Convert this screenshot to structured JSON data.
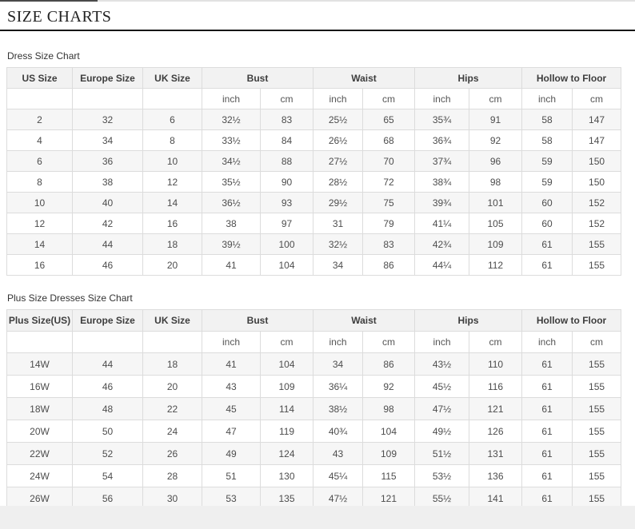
{
  "page": {
    "title": "SIZE CHARTS"
  },
  "units": {
    "inch": "inch",
    "cm": "cm"
  },
  "dress_chart": {
    "label": "Dress Size Chart",
    "columns": [
      "US Size",
      "Europe Size",
      "UK Size",
      "Bust",
      "Waist",
      "Hips",
      "Hollow to Floor"
    ],
    "rows": [
      [
        "2",
        "32",
        "6",
        "32½",
        "83",
        "25½",
        "65",
        "35¾",
        "91",
        "58",
        "147"
      ],
      [
        "4",
        "34",
        "8",
        "33½",
        "84",
        "26½",
        "68",
        "36¾",
        "92",
        "58",
        "147"
      ],
      [
        "6",
        "36",
        "10",
        "34½",
        "88",
        "27½",
        "70",
        "37¾",
        "96",
        "59",
        "150"
      ],
      [
        "8",
        "38",
        "12",
        "35½",
        "90",
        "28½",
        "72",
        "38¾",
        "98",
        "59",
        "150"
      ],
      [
        "10",
        "40",
        "14",
        "36½",
        "93",
        "29½",
        "75",
        "39¾",
        "101",
        "60",
        "152"
      ],
      [
        "12",
        "42",
        "16",
        "38",
        "97",
        "31",
        "79",
        "41¼",
        "105",
        "60",
        "152"
      ],
      [
        "14",
        "44",
        "18",
        "39½",
        "100",
        "32½",
        "83",
        "42¾",
        "109",
        "61",
        "155"
      ],
      [
        "16",
        "46",
        "20",
        "41",
        "104",
        "34",
        "86",
        "44¼",
        "112",
        "61",
        "155"
      ]
    ]
  },
  "plus_chart": {
    "label": "Plus Size Dresses Size Chart",
    "columns": [
      "Plus Size(US)",
      "Europe Size",
      "UK Size",
      "Bust",
      "Waist",
      "Hips",
      "Hollow to Floor"
    ],
    "rows": [
      [
        "14W",
        "44",
        "18",
        "41",
        "104",
        "34",
        "86",
        "43½",
        "110",
        "61",
        "155"
      ],
      [
        "16W",
        "46",
        "20",
        "43",
        "109",
        "36¼",
        "92",
        "45½",
        "116",
        "61",
        "155"
      ],
      [
        "18W",
        "48",
        "22",
        "45",
        "114",
        "38½",
        "98",
        "47½",
        "121",
        "61",
        "155"
      ],
      [
        "20W",
        "50",
        "24",
        "47",
        "119",
        "40¾",
        "104",
        "49½",
        "126",
        "61",
        "155"
      ],
      [
        "22W",
        "52",
        "26",
        "49",
        "124",
        "43",
        "109",
        "51½",
        "131",
        "61",
        "155"
      ],
      [
        "24W",
        "54",
        "28",
        "51",
        "130",
        "45¼",
        "115",
        "53½",
        "136",
        "61",
        "155"
      ],
      [
        "26W",
        "56",
        "30",
        "53",
        "135",
        "47½",
        "121",
        "55½",
        "141",
        "61",
        "155"
      ]
    ]
  },
  "colors": {
    "title_text": "#222222",
    "title_rule": "#161616",
    "header_bg": "#f2f2f2",
    "stripe_bg": "#f6f6f6",
    "border": "#dcdcdc",
    "cell_text": "#4d4d4d",
    "bottom_strip": "#efefef"
  }
}
